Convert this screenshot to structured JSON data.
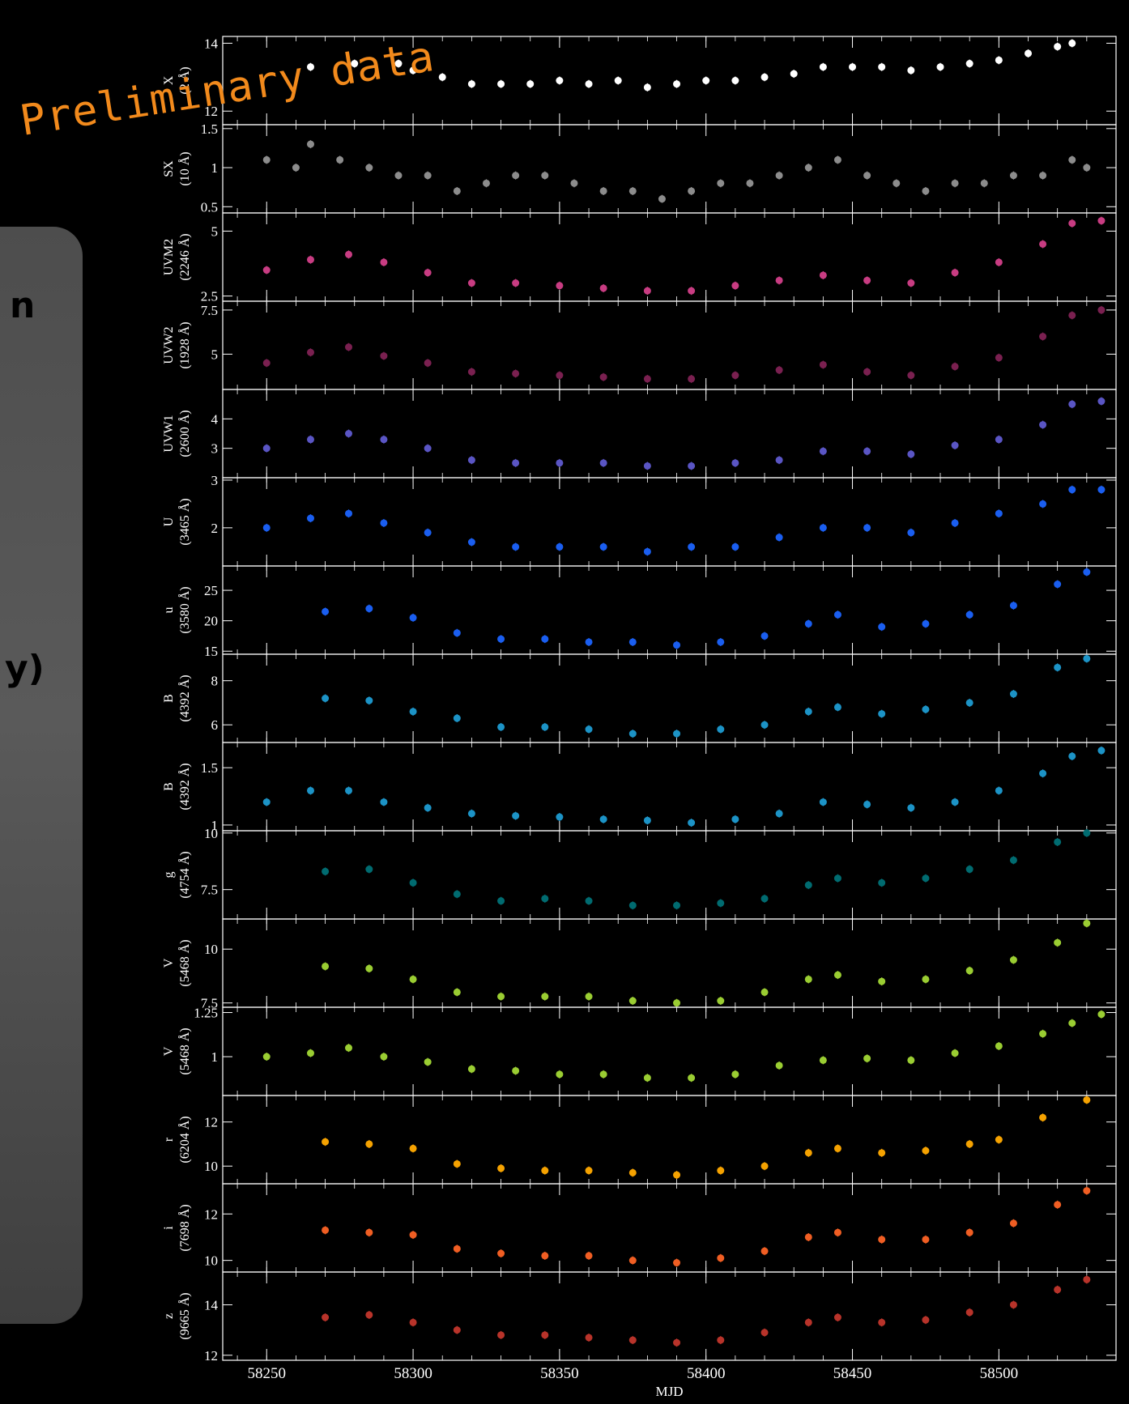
{
  "overlay": {
    "stamp": "Preliminary data",
    "side_fragments": [
      "n",
      "y)"
    ]
  },
  "chart_data": {
    "type": "scatter",
    "xlabel": "MJD",
    "xlim": [
      58235,
      58540
    ],
    "xticks": [
      58250,
      58300,
      58350,
      58400,
      58450,
      58500
    ],
    "panels": [
      {
        "ylabel": [
          "X",
          "(2 Å)"
        ],
        "color": "#ffffff",
        "ylim": [
          11.6,
          14.2
        ],
        "yticks": [
          12,
          14
        ],
        "x": [
          58265,
          58280,
          58295,
          58300,
          58310,
          58320,
          58330,
          58340,
          58350,
          58360,
          58370,
          58380,
          58390,
          58400,
          58410,
          58420,
          58430,
          58440,
          58450,
          58460,
          58470,
          58480,
          58490,
          58500,
          58510,
          58520,
          58525
        ],
        "y": [
          13.3,
          13.4,
          13.4,
          13.2,
          13.0,
          12.8,
          12.8,
          12.8,
          12.9,
          12.8,
          12.9,
          12.7,
          12.8,
          12.9,
          12.9,
          13.0,
          13.1,
          13.3,
          13.3,
          13.3,
          13.2,
          13.3,
          13.4,
          13.5,
          13.7,
          13.9,
          14.0
        ]
      },
      {
        "ylabel": [
          "SX",
          "(10 Å)"
        ],
        "color": "#8c8c8c",
        "ylim": [
          0.42,
          1.55
        ],
        "yticks": [
          0.5,
          1.0,
          1.5
        ],
        "x": [
          58250,
          58260,
          58265,
          58275,
          58285,
          58295,
          58305,
          58315,
          58325,
          58335,
          58345,
          58355,
          58365,
          58375,
          58385,
          58395,
          58405,
          58415,
          58425,
          58435,
          58445,
          58455,
          58465,
          58475,
          58485,
          58495,
          58505,
          58515,
          58525,
          58530
        ],
        "y": [
          1.1,
          1.0,
          1.3,
          1.1,
          1.0,
          0.9,
          0.9,
          0.7,
          0.8,
          0.9,
          0.9,
          0.8,
          0.7,
          0.7,
          0.6,
          0.7,
          0.8,
          0.8,
          0.9,
          1.0,
          1.1,
          0.9,
          0.8,
          0.7,
          0.8,
          0.8,
          0.9,
          0.9,
          1.1,
          1.0
        ]
      },
      {
        "ylabel": [
          "UVM2",
          "(2246 Å)"
        ],
        "color": "#c83c82",
        "ylim": [
          2.3,
          5.7
        ],
        "yticks": [
          2.5,
          5.0
        ],
        "x": [
          58250,
          58265,
          58278,
          58290,
          58305,
          58320,
          58335,
          58350,
          58365,
          58380,
          58395,
          58410,
          58425,
          58440,
          58455,
          58470,
          58485,
          58500,
          58515,
          58525,
          58535
        ],
        "y": [
          3.5,
          3.9,
          4.1,
          3.8,
          3.4,
          3.0,
          3.0,
          2.9,
          2.8,
          2.7,
          2.7,
          2.9,
          3.1,
          3.3,
          3.1,
          3.0,
          3.4,
          3.8,
          4.5,
          5.3,
          5.4
        ]
      },
      {
        "ylabel": [
          "UVW2",
          "(1928 Å)"
        ],
        "color": "#7a2050",
        "ylim": [
          3.0,
          8.0
        ],
        "yticks": [
          5.0,
          7.5
        ],
        "x": [
          58250,
          58265,
          58278,
          58290,
          58305,
          58320,
          58335,
          58350,
          58365,
          58380,
          58395,
          58410,
          58425,
          58440,
          58455,
          58470,
          58485,
          58500,
          58515,
          58525,
          58535
        ],
        "y": [
          4.5,
          5.1,
          5.4,
          4.9,
          4.5,
          4.0,
          3.9,
          3.8,
          3.7,
          3.6,
          3.6,
          3.8,
          4.1,
          4.4,
          4.0,
          3.8,
          4.3,
          4.8,
          6.0,
          7.2,
          7.5
        ]
      },
      {
        "ylabel": [
          "UVW1",
          "(2600 Å)"
        ],
        "color": "#5a55c4",
        "ylim": [
          2.0,
          5.0
        ],
        "yticks": [
          3,
          4
        ],
        "x": [
          58250,
          58265,
          58278,
          58290,
          58305,
          58320,
          58335,
          58350,
          58365,
          58380,
          58395,
          58410,
          58425,
          58440,
          58455,
          58470,
          58485,
          58500,
          58515,
          58525,
          58535
        ],
        "y": [
          3.0,
          3.3,
          3.5,
          3.3,
          3.0,
          2.6,
          2.5,
          2.5,
          2.5,
          2.4,
          2.4,
          2.5,
          2.6,
          2.9,
          2.9,
          2.8,
          3.1,
          3.3,
          3.8,
          4.5,
          4.6
        ]
      },
      {
        "ylabel": [
          "U",
          "(3465 Å)"
        ],
        "color": "#1a5ef0",
        "ylim": [
          1.2,
          3.05
        ],
        "yticks": [
          2,
          3
        ],
        "x": [
          58250,
          58265,
          58278,
          58290,
          58305,
          58320,
          58335,
          58350,
          58365,
          58380,
          58395,
          58410,
          58425,
          58440,
          58455,
          58470,
          58485,
          58500,
          58515,
          58525,
          58535
        ],
        "y": [
          2.0,
          2.2,
          2.3,
          2.1,
          1.9,
          1.7,
          1.6,
          1.6,
          1.6,
          1.5,
          1.6,
          1.6,
          1.8,
          2.0,
          2.0,
          1.9,
          2.1,
          2.3,
          2.5,
          2.8,
          2.8
        ]
      },
      {
        "ylabel": [
          "u",
          "(3580 Å)"
        ],
        "color": "#1a5ef0",
        "ylim": [
          14.5,
          29
        ],
        "yticks": [
          15,
          20,
          25
        ],
        "x": [
          58270,
          58285,
          58300,
          58315,
          58330,
          58345,
          58360,
          58375,
          58390,
          58405,
          58420,
          58435,
          58445,
          58460,
          58475,
          58490,
          58505,
          58520,
          58530
        ],
        "y": [
          21.5,
          22,
          20.5,
          18,
          17,
          17,
          16.5,
          16.5,
          16,
          16.5,
          17.5,
          19.5,
          21,
          19,
          19.5,
          21,
          22.5,
          26,
          28
        ]
      },
      {
        "ylabel": [
          "B",
          "(4392 Å)"
        ],
        "color": "#1c93c6",
        "ylim": [
          5.2,
          9.2
        ],
        "yticks": [
          6,
          8
        ],
        "x": [
          58270,
          58285,
          58300,
          58315,
          58330,
          58345,
          58360,
          58375,
          58390,
          58405,
          58420,
          58435,
          58445,
          58460,
          58475,
          58490,
          58505,
          58520,
          58530
        ],
        "y": [
          7.2,
          7.1,
          6.6,
          6.3,
          5.9,
          5.9,
          5.8,
          5.6,
          5.6,
          5.8,
          6.0,
          6.6,
          6.8,
          6.5,
          6.7,
          7.0,
          7.4,
          8.6,
          9.0
        ]
      },
      {
        "ylabel": [
          "B",
          "(4392 Å)"
        ],
        "color": "#1c93c6",
        "ylim": [
          0.95,
          1.72
        ],
        "yticks": [
          1.0,
          1.5
        ],
        "x": [
          58250,
          58265,
          58278,
          58290,
          58305,
          58320,
          58335,
          58350,
          58365,
          58380,
          58395,
          58410,
          58425,
          58440,
          58455,
          58470,
          58485,
          58500,
          58515,
          58525,
          58535
        ],
        "y": [
          1.2,
          1.3,
          1.3,
          1.2,
          1.15,
          1.1,
          1.08,
          1.07,
          1.05,
          1.04,
          1.02,
          1.05,
          1.1,
          1.2,
          1.18,
          1.15,
          1.2,
          1.3,
          1.45,
          1.6,
          1.65
        ]
      },
      {
        "ylabel": [
          "g",
          "(4754 Å)"
        ],
        "color": "#006b70",
        "ylim": [
          6.2,
          10.1
        ],
        "yticks": [
          7.5,
          10.0
        ],
        "x": [
          58270,
          58285,
          58300,
          58315,
          58330,
          58345,
          58360,
          58375,
          58390,
          58405,
          58420,
          58435,
          58445,
          58460,
          58475,
          58490,
          58505,
          58520,
          58530
        ],
        "y": [
          8.3,
          8.4,
          7.8,
          7.3,
          7.0,
          7.1,
          7.0,
          6.8,
          6.8,
          6.9,
          7.1,
          7.7,
          8.0,
          7.8,
          8.0,
          8.4,
          8.8,
          9.6,
          10.0
        ]
      },
      {
        "ylabel": [
          "V",
          "(5468 Å)"
        ],
        "color": "#9acd32",
        "ylim": [
          7.3,
          11.4
        ],
        "yticks": [
          7.5,
          10.0
        ],
        "x": [
          58270,
          58285,
          58300,
          58315,
          58330,
          58345,
          58360,
          58375,
          58390,
          58405,
          58420,
          58435,
          58445,
          58460,
          58475,
          58490,
          58505,
          58520,
          58530
        ],
        "y": [
          9.2,
          9.1,
          8.6,
          8.0,
          7.8,
          7.8,
          7.8,
          7.6,
          7.5,
          7.6,
          8.0,
          8.6,
          8.8,
          8.5,
          8.6,
          9.0,
          9.5,
          10.3,
          11.2
        ]
      },
      {
        "ylabel": [
          "V",
          "(5468 Å)"
        ],
        "color": "#9acd32",
        "ylim": [
          0.78,
          1.28
        ],
        "yticks": [
          1.0,
          1.25
        ],
        "x": [
          58250,
          58265,
          58278,
          58290,
          58305,
          58320,
          58335,
          58350,
          58365,
          58380,
          58395,
          58410,
          58425,
          58440,
          58455,
          58470,
          58485,
          58500,
          58515,
          58525,
          58535
        ],
        "y": [
          1.0,
          1.02,
          1.05,
          1.0,
          0.97,
          0.93,
          0.92,
          0.9,
          0.9,
          0.88,
          0.88,
          0.9,
          0.95,
          0.98,
          0.99,
          0.98,
          1.02,
          1.06,
          1.13,
          1.19,
          1.24
        ]
      },
      {
        "ylabel": [
          "r",
          "(6204 Å)"
        ],
        "color": "#f5a200",
        "ylim": [
          9.2,
          13.2
        ],
        "yticks": [
          10,
          12
        ],
        "x": [
          58270,
          58285,
          58300,
          58315,
          58330,
          58345,
          58360,
          58375,
          58390,
          58405,
          58420,
          58435,
          58445,
          58460,
          58475,
          58490,
          58500,
          58515,
          58530
        ],
        "y": [
          11.1,
          11.0,
          10.8,
          10.1,
          9.9,
          9.8,
          9.8,
          9.7,
          9.6,
          9.8,
          10.0,
          10.6,
          10.8,
          10.6,
          10.7,
          11.0,
          11.2,
          12.2,
          13.0
        ]
      },
      {
        "ylabel": [
          "i",
          "(7698 Å)"
        ],
        "color": "#f05e23",
        "ylim": [
          9.5,
          13.3
        ],
        "yticks": [
          10,
          12
        ],
        "x": [
          58270,
          58285,
          58300,
          58315,
          58330,
          58345,
          58360,
          58375,
          58390,
          58405,
          58420,
          58435,
          58445,
          58460,
          58475,
          58490,
          58505,
          58520,
          58530
        ],
        "y": [
          11.3,
          11.2,
          11.1,
          10.5,
          10.3,
          10.2,
          10.2,
          10.0,
          9.9,
          10.1,
          10.4,
          11.0,
          11.2,
          10.9,
          10.9,
          11.2,
          11.6,
          12.4,
          13.0
        ]
      },
      {
        "ylabel": [
          "z",
          "(9665 Å)"
        ],
        "color": "#b8332a",
        "ylim": [
          11.8,
          15.3
        ],
        "yticks": [
          12,
          14
        ],
        "x": [
          58270,
          58285,
          58300,
          58315,
          58330,
          58345,
          58360,
          58375,
          58390,
          58405,
          58420,
          58435,
          58445,
          58460,
          58475,
          58490,
          58505,
          58520,
          58530
        ],
        "y": [
          13.5,
          13.6,
          13.3,
          13.0,
          12.8,
          12.8,
          12.7,
          12.6,
          12.5,
          12.6,
          12.9,
          13.3,
          13.5,
          13.3,
          13.4,
          13.7,
          14.0,
          14.6,
          15.0
        ]
      }
    ]
  }
}
